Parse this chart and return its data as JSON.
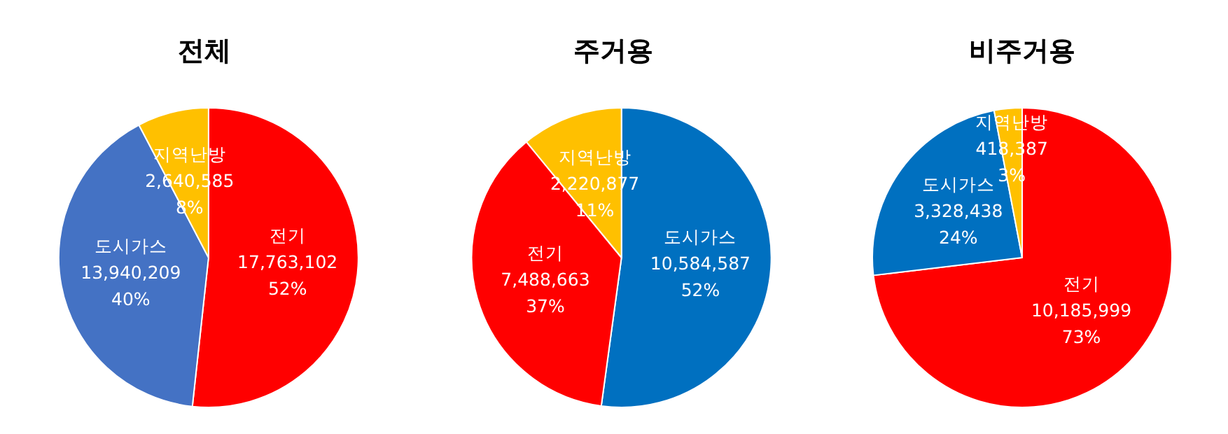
{
  "chart_data": [
    {
      "type": "pie",
      "title": "전체",
      "categories": [
        "전기",
        "도시가스",
        "지역난방"
      ],
      "values": [
        17763102,
        13940209,
        2640585
      ],
      "value_labels": [
        "17,763,102\n52%",
        "13,940,209\n40%",
        "2,640,585\n8%"
      ],
      "colors": [
        "#ff0000",
        "#4472c4",
        "#ffc000"
      ],
      "legend": false
    },
    {
      "type": "pie",
      "title": "주거용",
      "categories": [
        "도시가스",
        "전기",
        "지역난방"
      ],
      "values": [
        10584587,
        7488663,
        2220877
      ],
      "value_labels": [
        "10,584,587\n52%",
        "7,488,663\n37%",
        "2,220,877\n11%"
      ],
      "colors": [
        "#0070c0",
        "#ff0000",
        "#ffc000"
      ],
      "legend": false
    },
    {
      "type": "pie",
      "title": "비주거용",
      "categories": [
        "전기",
        "도시가스",
        "지역난방"
      ],
      "values": [
        10185999,
        3328438,
        418387
      ],
      "value_labels": [
        "10,185,999\n73%",
        "3,328,438\n24%",
        "418,387\n3%"
      ],
      "colors": [
        "#ff0000",
        "#0070c0",
        "#ffc000"
      ],
      "legend": false
    }
  ]
}
